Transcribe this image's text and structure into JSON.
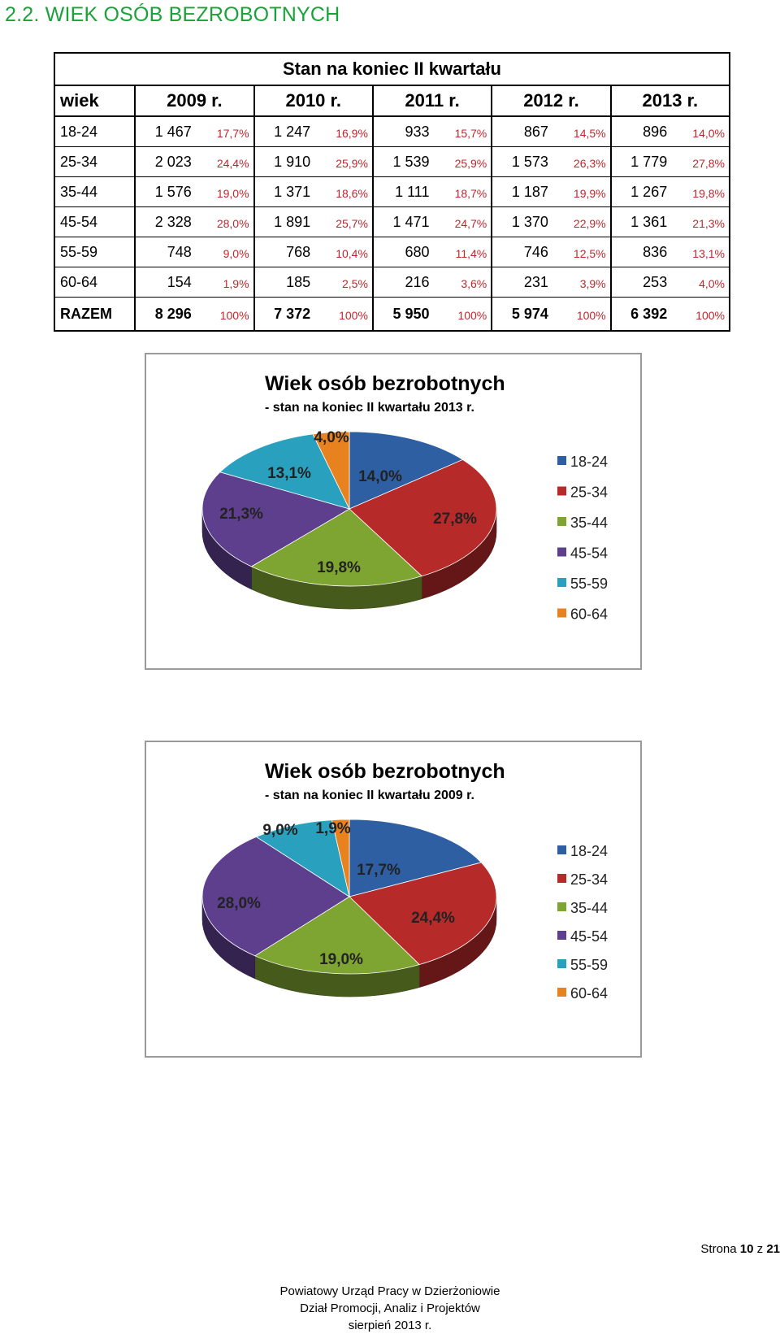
{
  "section_title": "2.2. WIEK OSÓB BEZROBOTNYCH",
  "table": {
    "group_header": "Stan na koniec II kwartału",
    "age_header": "wiek",
    "years": [
      "2009 r.",
      "2010 r.",
      "2011 r.",
      "2012 r.",
      "2013 r."
    ],
    "rows": [
      {
        "age": "18-24",
        "values": [
          [
            "1 467",
            "17,7%"
          ],
          [
            "1 247",
            "16,9%"
          ],
          [
            "933",
            "15,7%"
          ],
          [
            "867",
            "14,5%"
          ],
          [
            "896",
            "14,0%"
          ]
        ]
      },
      {
        "age": "25-34",
        "values": [
          [
            "2 023",
            "24,4%"
          ],
          [
            "1 910",
            "25,9%"
          ],
          [
            "1 539",
            "25,9%"
          ],
          [
            "1 573",
            "26,3%"
          ],
          [
            "1 779",
            "27,8%"
          ]
        ]
      },
      {
        "age": "35-44",
        "values": [
          [
            "1 576",
            "19,0%"
          ],
          [
            "1 371",
            "18,6%"
          ],
          [
            "1 111",
            "18,7%"
          ],
          [
            "1 187",
            "19,9%"
          ],
          [
            "1 267",
            "19,8%"
          ]
        ]
      },
      {
        "age": "45-54",
        "values": [
          [
            "2 328",
            "28,0%"
          ],
          [
            "1 891",
            "25,7%"
          ],
          [
            "1 471",
            "24,7%"
          ],
          [
            "1 370",
            "22,9%"
          ],
          [
            "1 361",
            "21,3%"
          ]
        ]
      },
      {
        "age": "55-59",
        "values": [
          [
            "748",
            "9,0%"
          ],
          [
            "768",
            "10,4%"
          ],
          [
            "680",
            "11,4%"
          ],
          [
            "746",
            "12,5%"
          ],
          [
            "836",
            "13,1%"
          ]
        ]
      },
      {
        "age": "60-64",
        "values": [
          [
            "154",
            "1,9%"
          ],
          [
            "185",
            "2,5%"
          ],
          [
            "216",
            "3,6%"
          ],
          [
            "231",
            "3,9%"
          ],
          [
            "253",
            "4,0%"
          ]
        ]
      }
    ],
    "total": {
      "age": "RAZEM",
      "values": [
        [
          "8 296",
          "100%"
        ],
        [
          "7 372",
          "100%"
        ],
        [
          "5 950",
          "100%"
        ],
        [
          "5 974",
          "100%"
        ],
        [
          "6 392",
          "100%"
        ]
      ]
    }
  },
  "chart_data": [
    {
      "type": "pie",
      "title": "Wiek osób bezrobotnych",
      "subtitle": "- stan na koniec II kwartału 2013 r.",
      "categories": [
        "18-24",
        "25-34",
        "35-44",
        "45-54",
        "55-59",
        "60-64"
      ],
      "values": [
        14.0,
        27.8,
        19.8,
        21.3,
        13.1,
        4.0
      ],
      "data_labels": [
        "14,0%",
        "27,8%",
        "19,8%",
        "21,3%",
        "13,1%",
        "4,0%"
      ],
      "legend_position": "right",
      "colors": [
        "#2e5fa3",
        "#b72a2a",
        "#7ea431",
        "#5e3f8e",
        "#2aa0bf",
        "#e8821f"
      ]
    },
    {
      "type": "pie",
      "title": "Wiek osób bezrobotnych",
      "subtitle": "- stan na koniec II kwartału 2009 r.",
      "categories": [
        "18-24",
        "25-34",
        "35-44",
        "45-54",
        "55-59",
        "60-64"
      ],
      "values": [
        17.7,
        24.4,
        19.0,
        28.0,
        9.0,
        1.9
      ],
      "data_labels": [
        "17,7%",
        "24,4%",
        "19,0%",
        "28,0%",
        "9,0%",
        "1,9%"
      ],
      "legend_position": "right",
      "colors": [
        "#2e5fa3",
        "#b72a2a",
        "#7ea431",
        "#5e3f8e",
        "#2aa0bf",
        "#e8821f"
      ]
    }
  ],
  "page": {
    "label_prefix": "Strona ",
    "current": "10",
    "of": " z ",
    "total": "21"
  },
  "footer": {
    "line1": "Powiatowy Urząd Pracy w Dzierżoniowie",
    "line2": "Dział Promocji, Analiz i Projektów",
    "line3": "sierpień 2013 r."
  }
}
